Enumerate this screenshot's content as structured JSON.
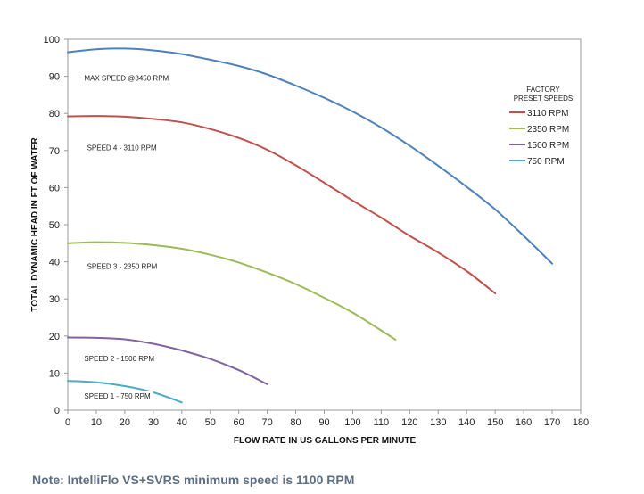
{
  "chart_data": {
    "type": "line",
    "title": "",
    "xlabel": "FLOW RATE IN US GALLONS PER MINUTE",
    "ylabel": "TOTAL DYNAMIC HEAD IN FT OF WATER",
    "xlim": [
      0,
      180
    ],
    "ylim": [
      0,
      100
    ],
    "xticks": [
      0,
      10,
      20,
      30,
      40,
      50,
      60,
      70,
      80,
      90,
      100,
      110,
      120,
      130,
      140,
      150,
      160,
      170,
      180
    ],
    "yticks": [
      0,
      10,
      20,
      30,
      40,
      50,
      60,
      70,
      80,
      90,
      100
    ],
    "grid": false,
    "legend": {
      "title_lines": [
        "FACTORY",
        "PRESET SPEEDS"
      ],
      "placement": "top-right"
    },
    "series": [
      {
        "name": "3110 RPM",
        "color": "#c0504d",
        "x": [
          0,
          10,
          20,
          30,
          40,
          50,
          60,
          70,
          80,
          90,
          100,
          110,
          120,
          130,
          140,
          150
        ],
        "y": [
          79.2,
          79.3,
          79.1,
          78.5,
          77.6,
          75.8,
          73.4,
          70.2,
          66.0,
          61.3,
          56.5,
          51.9,
          47.0,
          42.5,
          37.5,
          31.5
        ]
      },
      {
        "name": "2350 RPM",
        "color": "#9bbb59",
        "x": [
          0,
          10,
          20,
          30,
          40,
          50,
          60,
          70,
          80,
          90,
          100,
          110,
          115
        ],
        "y": [
          45.0,
          45.3,
          45.1,
          44.5,
          43.5,
          41.9,
          39.8,
          37.1,
          34.0,
          30.3,
          26.3,
          21.5,
          19.0
        ]
      },
      {
        "name": "1500 RPM",
        "color": "#8064a2",
        "x": [
          0,
          10,
          20,
          30,
          40,
          50,
          60,
          70
        ],
        "y": [
          19.6,
          19.5,
          19.1,
          17.9,
          16.1,
          13.8,
          10.8,
          7.0
        ]
      },
      {
        "name": "750 RPM",
        "color": "#4bacc6",
        "x": [
          0,
          10,
          20,
          30,
          40
        ],
        "y": [
          7.9,
          7.5,
          6.5,
          4.8,
          2.1
        ]
      },
      {
        "name": "",
        "color": "#4f81bd",
        "x": [
          0,
          10,
          20,
          30,
          40,
          50,
          60,
          70,
          80,
          90,
          100,
          110,
          120,
          130,
          140,
          150,
          160,
          170
        ],
        "y": [
          96.5,
          97.3,
          97.5,
          97.0,
          96.0,
          94.5,
          92.8,
          90.5,
          87.5,
          84.2,
          80.5,
          76.2,
          71.3,
          65.9,
          60.2,
          54.1,
          47.0,
          39.5
        ]
      }
    ],
    "annotations": [
      {
        "text": "MAX SPEED @3450 RPM",
        "x": 2,
        "y": 89.5
      },
      {
        "text": "SPEED 4 - 3110 RPM",
        "x": 3,
        "y": 70.8
      },
      {
        "text": "SPEED 3 - 2350 RPM",
        "x": 3,
        "y": 38.8
      },
      {
        "text": "SPEED 2 - 1500 RPM",
        "x": 2,
        "y": 14.0
      },
      {
        "text": "SPEED 1 - 750  RPM",
        "x": 2,
        "y": 3.8
      }
    ]
  },
  "note": "Note:  IntelliFlo VS+SVRS minimum speed is 1100 RPM"
}
